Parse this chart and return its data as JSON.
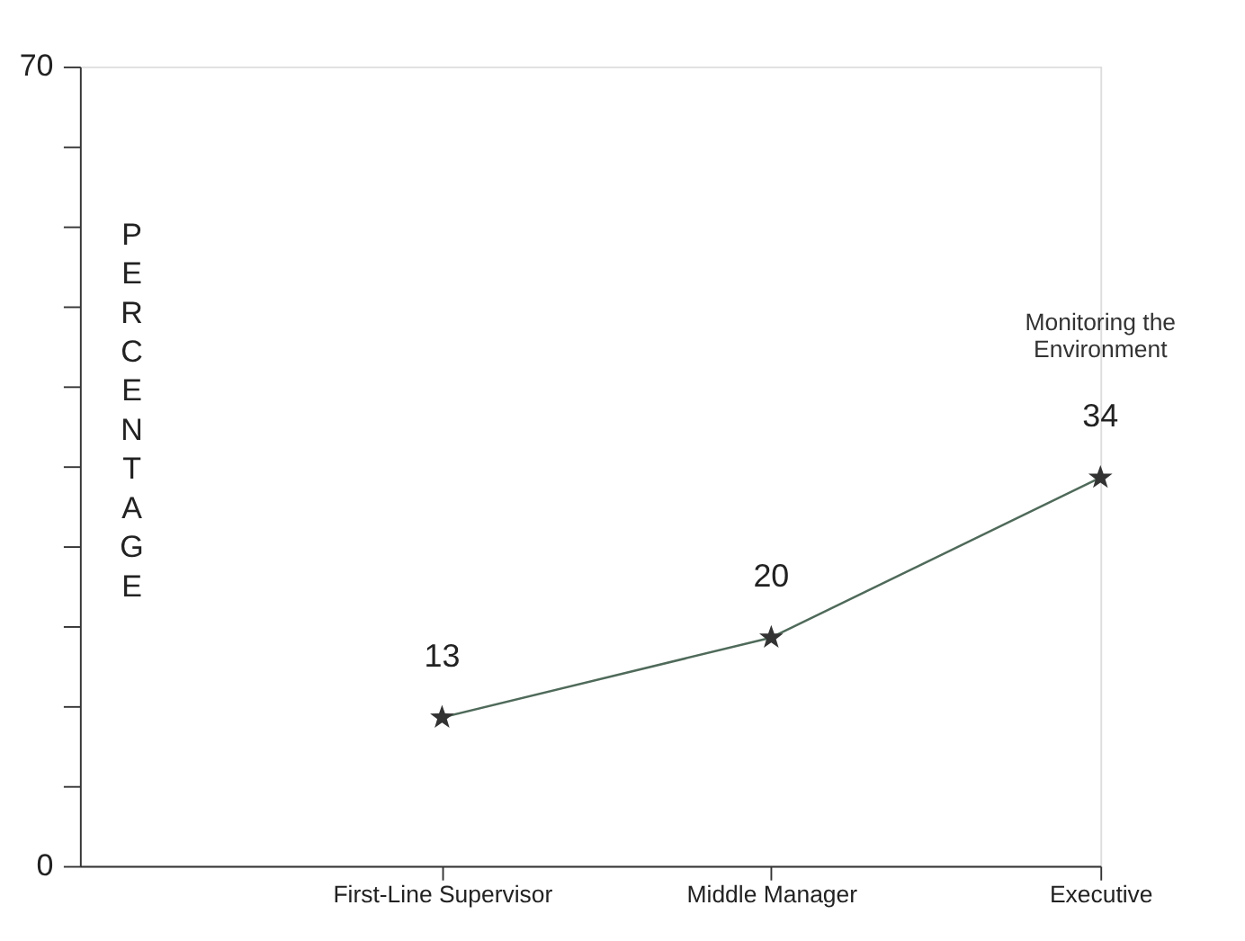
{
  "chart_data": {
    "type": "line",
    "ylabel": "PERCENTAGE",
    "categories": [
      "First-Line Supervisor",
      "Middle Manager",
      "Executive"
    ],
    "series": [
      {
        "color": "#4f6a5a",
        "values": [
          13,
          20,
          34
        ]
      }
    ],
    "ylim": [
      0,
      70
    ],
    "yticks": [
      0,
      {
        "value": 7,
        "label": null
      },
      {
        "value": 14,
        "label": null
      },
      {
        "value": 21,
        "label": null
      },
      {
        "value": 28,
        "label": null
      },
      {
        "value": 35,
        "label": null
      },
      {
        "value": 42,
        "label": null
      },
      {
        "value": 49,
        "label": null
      },
      {
        "value": 56,
        "label": null
      },
      {
        "value": 63,
        "label": null
      },
      70
    ],
    "annotations": [
      "Monitoring the\nEnvironment"
    ],
    "data_labels": true,
    "marker": "star",
    "line_style": "solid",
    "grid": false
  }
}
